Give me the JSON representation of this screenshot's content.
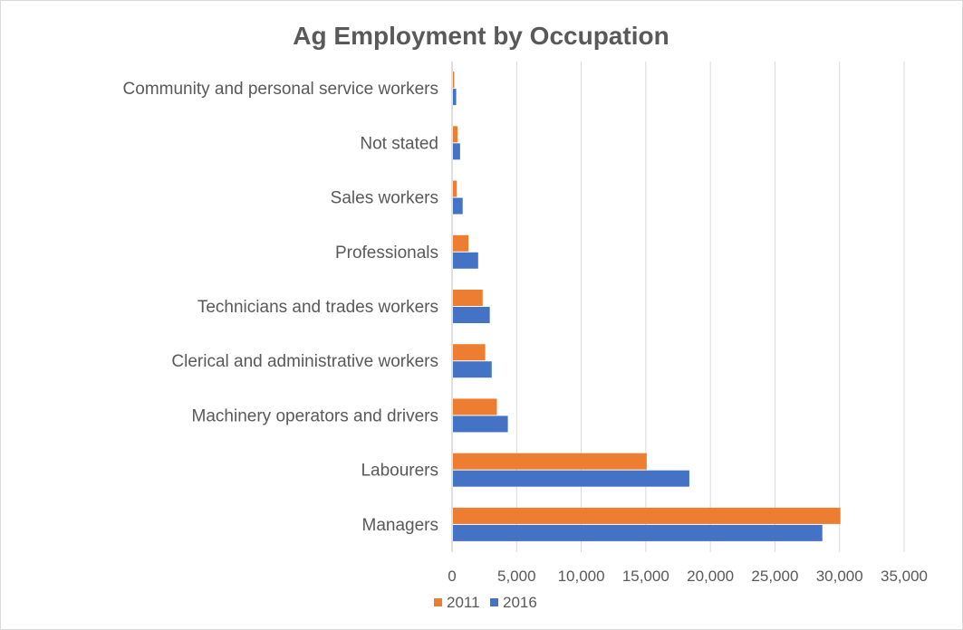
{
  "chart_data": {
    "type": "bar",
    "orientation": "horizontal",
    "title": "Ag Employment by Occupation",
    "categories": [
      "Community and personal service workers",
      "Not stated",
      "Sales workers",
      "Professionals",
      "Technicians and trades workers",
      "Clerical and administrative workers",
      "Machinery operators and drivers",
      "Labourers",
      "Managers"
    ],
    "series": [
      {
        "name": "2011",
        "color": "#ed7d31",
        "values": [
          100,
          350,
          300,
          1200,
          2300,
          2500,
          3400,
          15000,
          30000
        ]
      },
      {
        "name": "2016",
        "color": "#4472c4",
        "values": [
          250,
          550,
          750,
          1950,
          2850,
          3000,
          4250,
          18300,
          28600
        ]
      }
    ],
    "xlim": [
      0,
      35000
    ],
    "x_ticks": [
      "0",
      "5,000",
      "10,000",
      "15,000",
      "20,000",
      "25,000",
      "30,000",
      "35,000"
    ],
    "grid": true,
    "legend_position": "bottom"
  }
}
